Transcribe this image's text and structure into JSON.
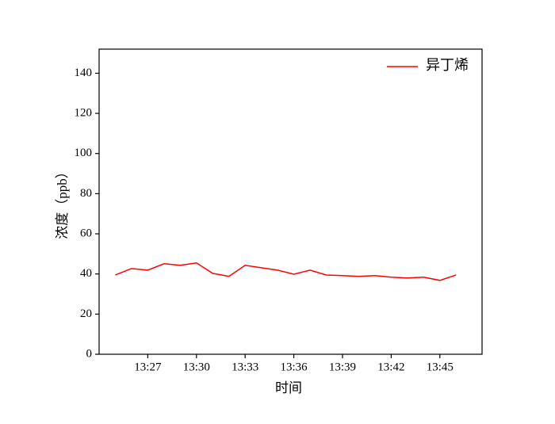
{
  "chart_data": {
    "type": "line",
    "x_label": "时间",
    "y_label": "浓度（ppb）",
    "x": [
      "13:25",
      "13:26",
      "13:27",
      "13:28",
      "13:29",
      "13:30",
      "13:31",
      "13:32",
      "13:33",
      "13:34",
      "13:35",
      "13:36",
      "13:37",
      "13:38",
      "13:39",
      "13:40",
      "13:41",
      "13:42",
      "13:43",
      "13:44",
      "13:45",
      "13:46"
    ],
    "series": [
      {
        "name": "异丁烯",
        "color": "#ff0000",
        "values": [
          39.5,
          42.7,
          41.9,
          45.1,
          44.3,
          45.5,
          40.3,
          38.8,
          44.3,
          43.1,
          41.9,
          39.9,
          41.9,
          39.5,
          39.2,
          38.8,
          39.2,
          38.4,
          38.0,
          38.4,
          36.8,
          39.5
        ]
      }
    ],
    "xlim": [
      "13:24",
      "13:47:36"
    ],
    "xticks": [
      "13:27",
      "13:30",
      "13:33",
      "13:36",
      "13:39",
      "13:42",
      "13:45"
    ],
    "ylim": [
      0,
      152
    ],
    "yticks": [
      0,
      20,
      40,
      60,
      80,
      100,
      120,
      140
    ],
    "legend": "upper right"
  }
}
